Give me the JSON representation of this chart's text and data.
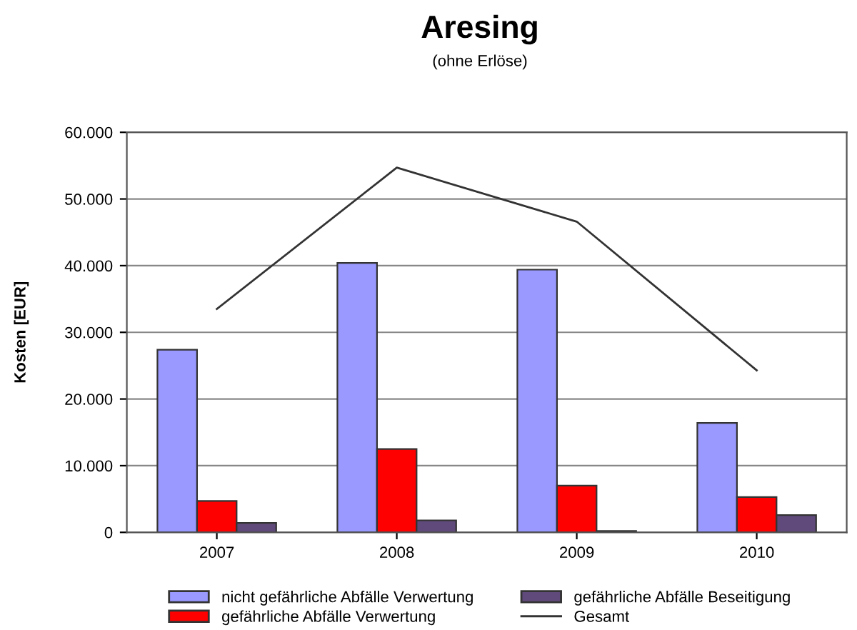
{
  "chart_data": {
    "type": "bar",
    "title": "Aresing",
    "subtitle": "(ohne Erlöse)",
    "ylabel": "Kosten [EUR]",
    "categories": [
      "2007",
      "2008",
      "2009",
      "2010"
    ],
    "series": [
      {
        "name": "nicht gefährliche Abfälle Verwertung",
        "color": "#9999ff",
        "values": [
          27400,
          40400,
          39400,
          16400
        ]
      },
      {
        "name": "gefährliche Abfälle Verwertung",
        "color": "#ff0000",
        "values": [
          4700,
          12500,
          7000,
          5300
        ]
      },
      {
        "name": "gefährliche Abfälle Beseitigung",
        "color": "#604a7b",
        "values": [
          1400,
          1800,
          200,
          2600
        ]
      },
      {
        "name": "Gesamt",
        "type": "line",
        "color": "#333333",
        "values": [
          33500,
          54700,
          46600,
          24300
        ]
      }
    ],
    "ylim": [
      0,
      60000
    ],
    "yticks": [
      {
        "value": 0,
        "label": "0"
      },
      {
        "value": 10000,
        "label": "10.000"
      },
      {
        "value": 20000,
        "label": "20.000"
      },
      {
        "value": 30000,
        "label": "30.000"
      },
      {
        "value": 40000,
        "label": "40.000"
      },
      {
        "value": 50000,
        "label": "50.000"
      },
      {
        "value": 60000,
        "label": "60.000"
      }
    ],
    "grid": "y",
    "legend": "bottom",
    "marker": "none",
    "line_style": "solid"
  }
}
